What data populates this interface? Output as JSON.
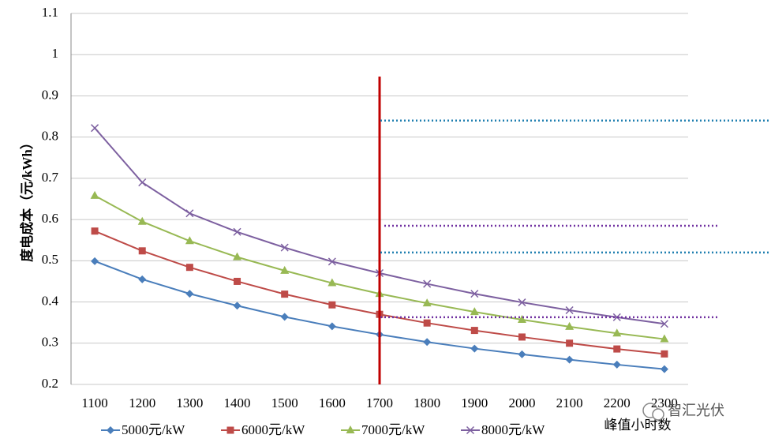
{
  "chart_data": {
    "type": "line",
    "y_label": "度电成本（元/kWh）",
    "x_label": "峰值小时数",
    "categories": [
      "1100",
      "1200",
      "1300",
      "1400",
      "1500",
      "1600",
      "1700",
      "1800",
      "1900",
      "2000",
      "2100",
      "2200",
      "2300"
    ],
    "series": [
      {
        "name": "5000元/kW",
        "color": "#4a7ebb",
        "marker": "diamond",
        "values": [
          0.499,
          0.455,
          0.42,
          0.391,
          0.364,
          0.341,
          0.321,
          0.303,
          0.287,
          0.273,
          0.26,
          0.248,
          0.237
        ]
      },
      {
        "name": "6000元/kW",
        "color": "#be4b48",
        "marker": "square",
        "values": [
          0.572,
          0.524,
          0.484,
          0.45,
          0.419,
          0.393,
          0.37,
          0.349,
          0.331,
          0.315,
          0.3,
          0.286,
          0.274
        ]
      },
      {
        "name": "7000元/kW",
        "color": "#98b954",
        "marker": "triangle",
        "values": [
          0.658,
          0.595,
          0.548,
          0.509,
          0.476,
          0.446,
          0.42,
          0.397,
          0.376,
          0.357,
          0.34,
          0.324,
          0.31
        ]
      },
      {
        "name": "8000元/kW",
        "color": "#7d60a0",
        "marker": "cross",
        "values": [
          0.822,
          0.69,
          0.615,
          0.57,
          0.532,
          0.498,
          0.47,
          0.444,
          0.42,
          0.399,
          0.38,
          0.363,
          0.347
        ]
      }
    ],
    "ylim": [
      0.2,
      1.1
    ],
    "yticks": [
      0.2,
      0.3,
      0.4,
      0.5,
      0.6,
      0.7,
      0.8,
      0.9,
      1,
      1.1
    ],
    "grid": true,
    "legend": "bottom",
    "vertical_line": {
      "category_index": 6,
      "color": "#c00000"
    },
    "reference_lines": [
      {
        "value": 0.84,
        "color": "#1f7fb0"
      },
      {
        "value": 0.585,
        "color": "#7030a0"
      },
      {
        "value": 0.52,
        "color": "#1f7fb0"
      },
      {
        "value": 0.363,
        "color": "#7030a0"
      }
    ]
  },
  "watermark": "智汇光伏"
}
